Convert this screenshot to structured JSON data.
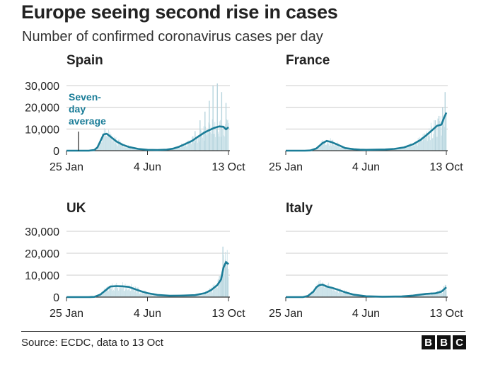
{
  "title": "Europe seeing second rise in cases",
  "subtitle": "Number of confirmed coronavirus cases per day",
  "source": "Source: ECDC, data to 13 Oct",
  "logo": [
    "B",
    "B",
    "C"
  ],
  "colors": {
    "line": "#1b7d98",
    "bars": "#c9e1e8",
    "grid": "#cccccc",
    "axis": "#333333",
    "text": "#222222"
  },
  "chart_data": [
    {
      "type": "line",
      "panel": "Spain",
      "x_ticks": [
        "25 Jan",
        "4 Jun",
        "13 Oct"
      ],
      "y_ticks": [
        "30,000",
        "20,000",
        "10,000",
        "0"
      ],
      "ylim": [
        0,
        30000
      ],
      "grid": true,
      "annotation": [
        "Seven-",
        "day",
        "average"
      ],
      "series": [
        {
          "name": "Seven-day average",
          "x": [
            "2020-01-25",
            "2020-02-20",
            "2020-03-01",
            "2020-03-10",
            "2020-03-15",
            "2020-03-20",
            "2020-03-25",
            "2020-03-30",
            "2020-04-05",
            "2020-04-15",
            "2020-04-25",
            "2020-05-05",
            "2020-05-20",
            "2020-06-04",
            "2020-06-20",
            "2020-07-05",
            "2020-07-15",
            "2020-07-25",
            "2020-08-05",
            "2020-08-15",
            "2020-08-25",
            "2020-09-05",
            "2020-09-12",
            "2020-09-20",
            "2020-09-28",
            "2020-10-05",
            "2020-10-09",
            "2020-10-13"
          ],
          "y": [
            0,
            0,
            0,
            300,
            1500,
            4500,
            7500,
            7800,
            6500,
            4200,
            2700,
            1700,
            800,
            400,
            300,
            500,
            900,
            1800,
            3200,
            4500,
            6500,
            8500,
            9500,
            10500,
            11200,
            11000,
            9800,
            10800
          ]
        }
      ],
      "daily_spikes": {
        "x": [
          "2020-08-20",
          "2020-08-28",
          "2020-09-05",
          "2020-09-12",
          "2020-09-18",
          "2020-09-25",
          "2020-10-02",
          "2020-10-09"
        ],
        "y": [
          9000,
          14000,
          18000,
          23000,
          30000,
          31000,
          27000,
          22000
        ]
      }
    },
    {
      "type": "line",
      "panel": "France",
      "x_ticks": [
        "25 Jan",
        "4 Jun",
        "13 Oct"
      ],
      "ylim": [
        0,
        30000
      ],
      "grid": true,
      "series": [
        {
          "name": "Seven-day average",
          "x": [
            "2020-01-25",
            "2020-02-25",
            "2020-03-05",
            "2020-03-15",
            "2020-03-25",
            "2020-04-01",
            "2020-04-08",
            "2020-04-20",
            "2020-05-01",
            "2020-05-15",
            "2020-05-25",
            "2020-06-04",
            "2020-06-20",
            "2020-07-05",
            "2020-07-20",
            "2020-08-05",
            "2020-08-20",
            "2020-09-01",
            "2020-09-10",
            "2020-09-20",
            "2020-09-28",
            "2020-10-05",
            "2020-10-09",
            "2020-10-13"
          ],
          "y": [
            0,
            0,
            100,
            1000,
            3500,
            4500,
            4000,
            2600,
            1200,
            700,
            500,
            400,
            450,
            550,
            800,
            1500,
            3000,
            5000,
            7000,
            9500,
            11500,
            12000,
            15000,
            17500
          ]
        }
      ],
      "daily_spikes": {
        "x": [
          "2020-09-25",
          "2020-10-01",
          "2020-10-07",
          "2020-10-11"
        ],
        "y": [
          14000,
          16000,
          20000,
          27000
        ]
      }
    },
    {
      "type": "line",
      "panel": "UK",
      "x_ticks": [
        "25 Jan",
        "4 Jun",
        "13 Oct"
      ],
      "y_ticks": [
        "30,000",
        "20,000",
        "10,000",
        "0"
      ],
      "ylim": [
        0,
        30000
      ],
      "grid": true,
      "series": [
        {
          "name": "Seven-day average",
          "x": [
            "2020-01-25",
            "2020-03-01",
            "2020-03-10",
            "2020-03-20",
            "2020-03-30",
            "2020-04-05",
            "2020-04-15",
            "2020-04-25",
            "2020-05-05",
            "2020-05-15",
            "2020-05-25",
            "2020-06-04",
            "2020-06-20",
            "2020-07-10",
            "2020-08-01",
            "2020-08-20",
            "2020-09-05",
            "2020-09-15",
            "2020-09-25",
            "2020-10-01",
            "2020-10-05",
            "2020-10-09",
            "2020-10-13"
          ],
          "y": [
            0,
            0,
            100,
            1200,
            3500,
            4800,
            5000,
            4900,
            4600,
            3600,
            2600,
            1800,
            1000,
            600,
            700,
            900,
            1800,
            3200,
            5500,
            8000,
            13500,
            16000,
            15000
          ]
        }
      ],
      "daily_spikes": {
        "x": [
          "2020-10-01",
          "2020-10-04",
          "2020-10-08",
          "2020-10-11"
        ],
        "y": [
          9000,
          23000,
          17000,
          16000
        ]
      }
    },
    {
      "type": "line",
      "panel": "Italy",
      "x_ticks": [
        "25 Jan",
        "4 Jun",
        "13 Oct"
      ],
      "ylim": [
        0,
        30000
      ],
      "grid": true,
      "series": [
        {
          "name": "Seven-day average",
          "x": [
            "2020-01-25",
            "2020-02-22",
            "2020-03-01",
            "2020-03-10",
            "2020-03-15",
            "2020-03-20",
            "2020-03-25",
            "2020-04-01",
            "2020-04-10",
            "2020-04-20",
            "2020-05-01",
            "2020-05-15",
            "2020-06-04",
            "2020-07-01",
            "2020-08-01",
            "2020-08-20",
            "2020-09-10",
            "2020-09-25",
            "2020-10-05",
            "2020-10-13"
          ],
          "y": [
            0,
            0,
            500,
            2500,
            4500,
            5500,
            5700,
            4800,
            4200,
            3300,
            2200,
            1100,
            400,
            200,
            300,
            700,
            1500,
            1700,
            2500,
            4500
          ]
        }
      ],
      "daily_spikes": {
        "x": [
          "2020-10-09",
          "2020-10-12"
        ],
        "y": [
          5000,
          5500
        ]
      }
    }
  ]
}
